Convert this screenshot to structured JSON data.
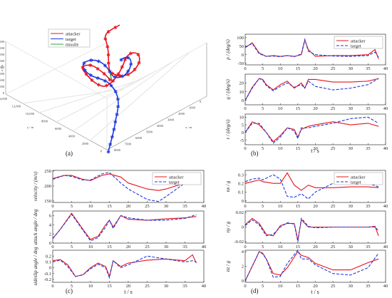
{
  "labels": {
    "a": "(a)",
    "b": "(b)",
    "c": "(c)",
    "d": "(d)",
    "xlabel": "t / s"
  },
  "legend3d": [
    "attacker",
    "target",
    "missile"
  ],
  "colors": {
    "attacker": "#e8141b",
    "target": "#1c3ae0",
    "missile": "#27a83a"
  },
  "chart_data": [
    {
      "id": "traj3d",
      "type": "line3d",
      "ticks_x": [
        "8000",
        "7000",
        "6000",
        "5000",
        "4000",
        "3000",
        "2000",
        "1000",
        "0"
      ],
      "ticks_y": [
        "14,000",
        "12,000",
        "10,000",
        "8000",
        "6000",
        "4000",
        "2000",
        "0"
      ],
      "ticks_z": [
        "40,000",
        "35,000",
        "30,000",
        "25,000",
        "20,000",
        "15,000",
        "10,000",
        "5000",
        "0"
      ],
      "axis_labels": [
        "x / m",
        "y / m",
        "z / m"
      ],
      "series": [
        {
          "name": "attacker"
        },
        {
          "name": "target"
        },
        {
          "name": "missile"
        }
      ]
    },
    {
      "id": "p",
      "type": "line",
      "ylabel": "p / (deg/s)",
      "xlim": [
        0,
        40
      ],
      "ylim": [
        -60,
        120
      ],
      "yticks": [
        -50,
        0,
        50,
        100
      ],
      "xticks": [
        0,
        5,
        10,
        15,
        20,
        25,
        30,
        35,
        40
      ],
      "legend": "top-right",
      "series": [
        {
          "name": "attacker",
          "x": [
            0,
            2,
            4,
            6,
            8,
            10,
            12,
            14,
            16,
            17,
            18,
            20,
            25,
            30,
            35,
            37,
            38
          ],
          "y": [
            40,
            70,
            10,
            -10,
            -5,
            -10,
            -5,
            -10,
            0,
            85,
            30,
            -10,
            -5,
            -5,
            0,
            30,
            -25
          ]
        },
        {
          "name": "target",
          "x": [
            0,
            2,
            4,
            6,
            8,
            10,
            12,
            14,
            16,
            17,
            18,
            20,
            25,
            30,
            35,
            37,
            38
          ],
          "y": [
            45,
            65,
            5,
            -10,
            -8,
            -12,
            -5,
            -12,
            5,
            90,
            20,
            0,
            -8,
            -10,
            -5,
            15,
            -15
          ]
        }
      ]
    },
    {
      "id": "q",
      "type": "line",
      "ylabel": "q / (deg/s)",
      "xlim": [
        0,
        40
      ],
      "ylim": [
        -5,
        30
      ],
      "yticks": [
        0,
        10,
        20
      ],
      "xticks": [
        0,
        5,
        10,
        15,
        20,
        25,
        30,
        35,
        40
      ],
      "series": [
        {
          "name": "attacker",
          "x": [
            0,
            2,
            4,
            5,
            6,
            8,
            10,
            12,
            14,
            16,
            17,
            18,
            20,
            25,
            30,
            35,
            38
          ],
          "y": [
            0,
            15,
            25,
            24,
            18,
            12,
            18,
            22,
            14,
            20,
            14,
            24,
            24,
            21,
            21,
            22,
            25
          ]
        },
        {
          "name": "target",
          "x": [
            0,
            2,
            4,
            5,
            6,
            8,
            10,
            12,
            14,
            16,
            17,
            18,
            20,
            25,
            30,
            35,
            38
          ],
          "y": [
            0,
            14,
            25,
            23,
            17,
            11,
            16,
            20,
            15,
            18,
            14,
            22,
            16,
            12,
            14,
            18,
            25
          ]
        }
      ]
    },
    {
      "id": "r",
      "type": "line",
      "ylabel": "r / (deg/s)",
      "xlim": [
        0,
        40
      ],
      "ylim": [
        -8,
        12
      ],
      "yticks": [
        -5,
        0,
        5,
        10
      ],
      "xticks": [
        0,
        5,
        10,
        15,
        20,
        25,
        30,
        35,
        40
      ],
      "series": [
        {
          "name": "attacker",
          "x": [
            0,
            2,
            4,
            6,
            8,
            10,
            12,
            14,
            15,
            16,
            18,
            20,
            25,
            30,
            35,
            38
          ],
          "y": [
            0,
            7,
            5,
            0,
            -6,
            -2,
            3,
            2,
            -3,
            2,
            4,
            5,
            7,
            5,
            6,
            4
          ]
        },
        {
          "name": "target",
          "x": [
            0,
            2,
            4,
            6,
            8,
            10,
            12,
            14,
            15,
            16,
            18,
            20,
            25,
            30,
            35,
            38
          ],
          "y": [
            0,
            6,
            6,
            0,
            -7,
            -3,
            3,
            1,
            -4,
            3,
            3,
            4,
            6,
            9,
            10,
            6
          ]
        }
      ]
    },
    {
      "id": "vel",
      "type": "line",
      "ylabel": "velocity / (m/s)",
      "xlim": [
        0,
        40
      ],
      "ylim": [
        145,
        252
      ],
      "yticks": [
        150,
        200,
        250
      ],
      "xticks": [
        0,
        5,
        10,
        15,
        20,
        25,
        30,
        35,
        40
      ],
      "legend": "top-right",
      "series": [
        {
          "name": "attacker",
          "x": [
            0,
            3,
            5,
            8,
            10,
            13,
            15,
            18,
            20,
            25,
            28,
            30,
            35,
            38
          ],
          "y": [
            225,
            235,
            235,
            222,
            218,
            235,
            240,
            230,
            210,
            190,
            185,
            190,
            210,
            215
          ]
        },
        {
          "name": "target",
          "x": [
            0,
            3,
            5,
            8,
            10,
            13,
            15,
            18,
            20,
            25,
            28,
            30,
            35,
            38
          ],
          "y": [
            222,
            235,
            232,
            220,
            220,
            240,
            245,
            210,
            190,
            155,
            148,
            165,
            210,
            225
          ]
        }
      ]
    },
    {
      "id": "attack",
      "type": "line",
      "ylabel": "attack angle / deg",
      "xlim": [
        0,
        40
      ],
      "ylim": [
        0,
        7
      ],
      "yticks": [
        0,
        2,
        4,
        6
      ],
      "xticks": [
        0,
        5,
        10,
        15,
        20,
        25,
        30,
        35,
        40
      ],
      "series": [
        {
          "name": "attacker",
          "x": [
            0,
            2,
            5,
            8,
            10,
            12,
            14,
            15,
            16,
            18,
            20,
            25,
            30,
            35,
            38
          ],
          "y": [
            1,
            3,
            6.5,
            3,
            0.8,
            1.5,
            4,
            5,
            3.5,
            6,
            5.2,
            5,
            5.3,
            5.5,
            5.8
          ]
        },
        {
          "name": "target",
          "x": [
            0,
            2,
            5,
            8,
            10,
            12,
            14,
            15,
            16,
            18,
            20,
            25,
            30,
            35,
            38
          ],
          "y": [
            1,
            3,
            6.3,
            2.8,
            0.5,
            1.2,
            3.5,
            5,
            3.2,
            6,
            5.5,
            5,
            5,
            5.4,
            6.2
          ]
        }
      ]
    },
    {
      "id": "sideslip",
      "type": "line",
      "ylabel": "sideslip angle / deg",
      "xlim": [
        0,
        40
      ],
      "ylim": [
        -0.25,
        0.3
      ],
      "yticks": [
        -0.2,
        -0.1,
        0,
        0.1,
        0.2
      ],
      "xticks": [
        0,
        5,
        10,
        15,
        20,
        25,
        30,
        35,
        40
      ],
      "series": [
        {
          "name": "attacker",
          "x": [
            0,
            2,
            4,
            6,
            8,
            10,
            12,
            14,
            15,
            16,
            18,
            20,
            25,
            30,
            35,
            37,
            38
          ],
          "y": [
            0.12,
            0.14,
            0.05,
            -0.15,
            -0.12,
            0,
            0.08,
            0.02,
            -0.15,
            0.12,
            0.02,
            0.08,
            0.13,
            0.15,
            0.12,
            0.22,
            0.08
          ]
        },
        {
          "name": "target",
          "x": [
            0,
            2,
            4,
            6,
            8,
            10,
            12,
            14,
            15,
            16,
            18,
            20,
            25,
            30,
            35,
            37,
            38
          ],
          "y": [
            0.1,
            0.13,
            0.02,
            -0.15,
            -0.12,
            -0.02,
            0.06,
            0.0,
            -0.17,
            0.12,
            0.0,
            0.05,
            0.2,
            0.15,
            0.1,
            0.12,
            0.1
          ]
        }
      ]
    },
    {
      "id": "nx",
      "type": "line",
      "ylabel": "nx / g",
      "xlim": [
        0,
        40
      ],
      "ylim": [
        -0.02,
        0.35
      ],
      "yticks": [
        0,
        0.1,
        0.2,
        0.3
      ],
      "xticks": [
        0,
        5,
        10,
        15,
        20,
        25,
        30,
        35,
        40
      ],
      "legend": "top-right",
      "series": [
        {
          "name": "attacker",
          "x": [
            0,
            2,
            4,
            5,
            8,
            10,
            12,
            14,
            16,
            18,
            20,
            25,
            30,
            35,
            38
          ],
          "y": [
            0.2,
            0.22,
            0.24,
            0.22,
            0.2,
            0.2,
            0.32,
            0.18,
            0.12,
            0.18,
            0.15,
            0.15,
            0.16,
            0.16,
            0.15
          ]
        },
        {
          "name": "target",
          "x": [
            0,
            2,
            4,
            5,
            8,
            10,
            12,
            14,
            16,
            18,
            20,
            25,
            30,
            35,
            38
          ],
          "y": [
            0.22,
            0.25,
            0.26,
            0.24,
            0.3,
            0.25,
            0.05,
            0.04,
            0.08,
            0.02,
            0.1,
            0.2,
            0.22,
            0.2,
            0.16
          ]
        }
      ]
    },
    {
      "id": "ny",
      "type": "line",
      "ylabel": "ny / g",
      "xlim": [
        0,
        40
      ],
      "ylim": [
        -0.022,
        0.022
      ],
      "yticks": [
        -0.02,
        0,
        0.02
      ],
      "xticks": [
        0,
        5,
        10,
        15,
        20,
        25,
        30,
        35,
        40
      ],
      "series": [
        {
          "name": "attacker",
          "x": [
            0,
            2,
            4,
            6,
            8,
            10,
            12,
            14,
            15,
            16,
            18,
            20,
            25,
            30,
            35,
            37,
            38
          ],
          "y": [
            0.003,
            0.012,
            0.005,
            -0.01,
            -0.012,
            0.002,
            0.005,
            0.005,
            -0.018,
            0.01,
            0.0,
            0.0,
            0.0,
            0.0,
            0.0,
            0.001,
            -0.012
          ]
        },
        {
          "name": "target",
          "x": [
            0,
            2,
            4,
            6,
            8,
            10,
            12,
            14,
            15,
            16,
            18,
            20,
            25,
            30,
            35,
            37,
            38
          ],
          "y": [
            0.002,
            0.01,
            0.003,
            -0.012,
            -0.01,
            0.0,
            0.006,
            0.004,
            -0.02,
            0.012,
            0.001,
            -0.001,
            0.0,
            0.0,
            0.0,
            0.0,
            -0.005
          ]
        }
      ]
    },
    {
      "id": "nz",
      "type": "line",
      "ylabel": "nz / g",
      "xlim": [
        0,
        40
      ],
      "ylim": [
        -0.2,
        4.2
      ],
      "yticks": [
        0,
        2,
        4
      ],
      "xticks": [
        0,
        5,
        10,
        15,
        20,
        25,
        30,
        35,
        40
      ],
      "series": [
        {
          "name": "attacker",
          "x": [
            0,
            2,
            4,
            5,
            6,
            8,
            10,
            12,
            15,
            16,
            18,
            20,
            25,
            30,
            35,
            38
          ],
          "y": [
            0,
            2,
            4,
            3.8,
            3,
            1,
            0.8,
            1.8,
            4,
            3.5,
            3.2,
            2.4,
            1.5,
            1.5,
            2.5,
            3
          ]
        },
        {
          "name": "target",
          "x": [
            0,
            2,
            4,
            5,
            6,
            8,
            10,
            12,
            15,
            16,
            18,
            20,
            25,
            30,
            35,
            38
          ],
          "y": [
            0,
            2,
            4,
            3.7,
            3,
            0.5,
            0.6,
            2.4,
            4.2,
            3.0,
            3.0,
            2.2,
            1.0,
            0.8,
            1.8,
            3.8
          ]
        }
      ]
    }
  ]
}
